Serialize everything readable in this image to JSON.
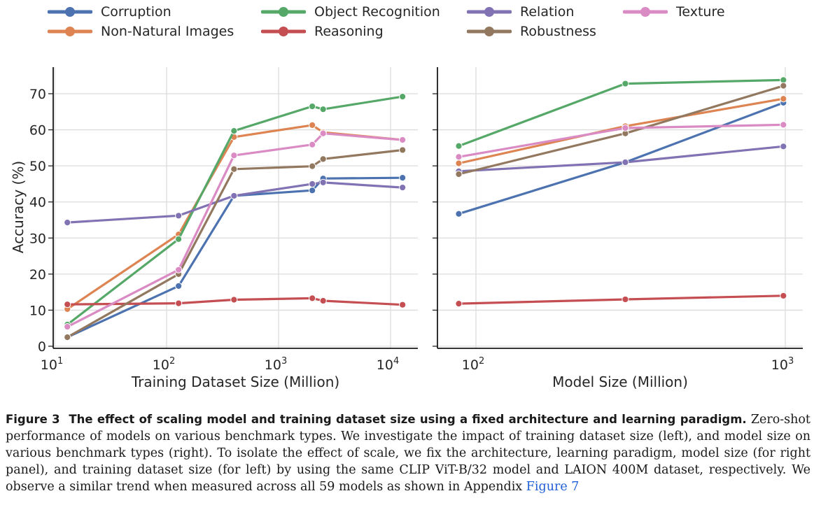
{
  "chart_data": [
    {
      "type": "line",
      "panel": "left",
      "title": "",
      "xlabel": "Training Dataset Size (Million)",
      "ylabel": "Accuracy (%)",
      "xscale": "log",
      "xlim": [
        10,
        16000
      ],
      "ylim": [
        -1,
        76
      ],
      "xticks": [
        10,
        100,
        1000,
        10000
      ],
      "xtick_labels": [
        {
          "base": "10",
          "exp": "1"
        },
        {
          "base": "10",
          "exp": "2"
        },
        {
          "base": "10",
          "exp": "3"
        },
        {
          "base": "10",
          "exp": "4"
        }
      ],
      "yticks": [
        0,
        10,
        20,
        30,
        40,
        50,
        60,
        70
      ],
      "ytick_labels": [
        "0",
        "10",
        "20",
        "30",
        "40",
        "50",
        "60",
        "70"
      ],
      "grid": true,
      "x": [
        13,
        128,
        400,
        2000,
        2500,
        12800
      ],
      "series": [
        {
          "name": "Corruption",
          "color": "#4c72b0",
          "values": [
            2.5,
            16.7,
            41.7,
            43.2,
            46.5,
            46.7
          ]
        },
        {
          "name": "Non-Natural Images",
          "color": "#dd8452",
          "values": [
            10.3,
            31.0,
            58.0,
            61.3,
            59.3,
            57.2
          ]
        },
        {
          "name": "Object Recognition",
          "color": "#55a868",
          "values": [
            6.0,
            29.7,
            59.7,
            66.5,
            65.7,
            69.2
          ]
        },
        {
          "name": "Reasoning",
          "color": "#c44e52",
          "values": [
            11.6,
            11.9,
            12.9,
            13.3,
            12.6,
            11.5
          ]
        },
        {
          "name": "Relation",
          "color": "#8172b3",
          "values": [
            34.3,
            36.2,
            41.7,
            45.0,
            45.4,
            44.0
          ]
        },
        {
          "name": "Robustness",
          "color": "#937860",
          "values": [
            2.5,
            20.0,
            49.1,
            49.9,
            51.9,
            54.4
          ]
        },
        {
          "name": "Texture",
          "color": "#da8bc3",
          "values": [
            5.4,
            21.2,
            52.9,
            55.9,
            59.0,
            57.2
          ]
        }
      ]
    },
    {
      "type": "line",
      "panel": "right",
      "title": "",
      "xlabel": "Model Size (Million)",
      "ylabel": "",
      "xscale": "log",
      "xlim": [
        75,
        1100
      ],
      "ylim": [
        -1,
        76
      ],
      "xticks": [
        100,
        1000
      ],
      "xtick_labels": [
        {
          "base": "10",
          "exp": "2"
        },
        {
          "base": "10",
          "exp": "3"
        }
      ],
      "yticks": [
        0,
        10,
        20,
        30,
        40,
        50,
        60,
        70
      ],
      "grid": true,
      "x": [
        88,
        304,
        986
      ],
      "series": [
        {
          "name": "Corruption",
          "color": "#4c72b0",
          "values": [
            36.7,
            51.0,
            67.5
          ]
        },
        {
          "name": "Non-Natural Images",
          "color": "#dd8452",
          "values": [
            50.7,
            61.0,
            68.6
          ]
        },
        {
          "name": "Object Recognition",
          "color": "#55a868",
          "values": [
            55.5,
            72.8,
            73.8
          ]
        },
        {
          "name": "Reasoning",
          "color": "#c44e52",
          "values": [
            11.8,
            13.0,
            14.0
          ]
        },
        {
          "name": "Relation",
          "color": "#8172b3",
          "values": [
            48.5,
            51.0,
            55.4
          ]
        },
        {
          "name": "Robustness",
          "color": "#937860",
          "values": [
            47.7,
            59.0,
            72.2
          ]
        },
        {
          "name": "Texture",
          "color": "#da8bc3",
          "values": [
            52.5,
            60.5,
            61.4
          ]
        }
      ]
    }
  ],
  "legend": {
    "placement": "top-center",
    "items": [
      {
        "label": "Corruption",
        "color": "#4c72b0"
      },
      {
        "label": "Non-Natural Images",
        "color": "#dd8452"
      },
      {
        "label": "Object Recognition",
        "color": "#55a868"
      },
      {
        "label": "Reasoning",
        "color": "#c44e52"
      },
      {
        "label": "Relation",
        "color": "#8172b3"
      },
      {
        "label": "Robustness",
        "color": "#937860"
      },
      {
        "label": "Texture",
        "color": "#da8bc3"
      }
    ]
  },
  "caption": {
    "label": "Figure 3",
    "title": "The effect of scaling model and training dataset size using a fixed architecture and learning paradigm.",
    "body": "Zero-shot performance of models on various benchmark types. We investigate the impact of training dataset size (left), and model size on various benchmark types (right). To isolate the effect of scale, we fix the architecture, learning paradigm, model size (for right panel), and training dataset size (for left) by using the same CLIP ViT-B/32 model and LAION 400M dataset, respectively. We observe a similar trend when measured across all 59 models as shown in Appendix",
    "link": "Figure 7"
  }
}
